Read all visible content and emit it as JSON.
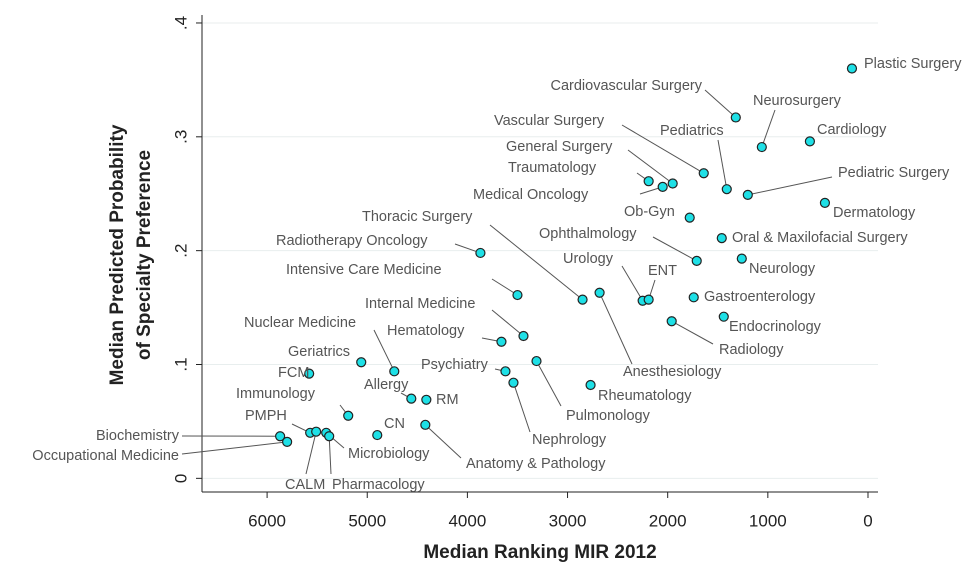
{
  "chart_data": {
    "type": "scatter",
    "xlabel": "Median Ranking MIR 2012",
    "ylabel": [
      "Median Predicted Probability",
      "of Specialty Preference"
    ],
    "xlim": [
      6650,
      -100
    ],
    "ylim": [
      -0.012,
      0.407
    ],
    "xticks": [
      6000,
      5000,
      4000,
      3000,
      2000,
      1000,
      0
    ],
    "yticks": [
      0,
      {
        "value": 0.1,
        "label": ".1"
      },
      {
        "value": 0.2,
        "label": ".2"
      },
      {
        "value": 0.3,
        "label": ".3"
      },
      {
        "value": 0.4,
        "label": ".4"
      }
    ],
    "grid": true,
    "color": "#1ee0e6",
    "points": [
      {
        "label": "Plastic Surgery",
        "x": 160,
        "y": 0.36
      },
      {
        "label": "Cardiovascular Surgery",
        "x": 1320,
        "y": 0.317
      },
      {
        "label": "Neurosurgery",
        "x": 1060,
        "y": 0.291
      },
      {
        "label": "Cardiology",
        "x": 580,
        "y": 0.296
      },
      {
        "label": "Pediatric Surgery",
        "x": 1200,
        "y": 0.249
      },
      {
        "label": "Dermatology",
        "x": 430,
        "y": 0.242
      },
      {
        "label": "Pediatrics",
        "x": 1410,
        "y": 0.254
      },
      {
        "label": "Vascular Surgery",
        "x": 1640,
        "y": 0.268
      },
      {
        "label": "General Surgery",
        "x": 1950,
        "y": 0.259
      },
      {
        "label": "Traumatology",
        "x": 2190,
        "y": 0.261
      },
      {
        "label": "Medical Oncology",
        "x": 2050,
        "y": 0.256
      },
      {
        "label": "Ob-Gyn",
        "x": 1780,
        "y": 0.229
      },
      {
        "label": "Oral & Maxilofacial Surgery",
        "x": 1460,
        "y": 0.211
      },
      {
        "label": "Ophthalmology",
        "x": 1710,
        "y": 0.191
      },
      {
        "label": "Neurology",
        "x": 1260,
        "y": 0.193
      },
      {
        "label": "Urology",
        "x": 2250,
        "y": 0.156
      },
      {
        "label": "ENT",
        "x": 2190,
        "y": 0.157
      },
      {
        "label": "Gastroenterology",
        "x": 1740,
        "y": 0.159
      },
      {
        "label": "Endocrinology",
        "x": 1440,
        "y": 0.142
      },
      {
        "label": "Radiology",
        "x": 1960,
        "y": 0.138
      },
      {
        "label": "Anesthesiology",
        "x": 2680,
        "y": 0.163
      },
      {
        "label": "Thoracic Surgery",
        "x": 2850,
        "y": 0.157
      },
      {
        "label": "Radiotherapy Oncology",
        "x": 3870,
        "y": 0.198
      },
      {
        "label": "Intensive Care Medicine",
        "x": 3500,
        "y": 0.161
      },
      {
        "label": "Internal Medicine",
        "x": 3440,
        "y": 0.125
      },
      {
        "label": "Hematology",
        "x": 3660,
        "y": 0.12
      },
      {
        "label": "Nuclear Medicine",
        "x": 4730,
        "y": 0.094
      },
      {
        "label": "Geriatrics",
        "x": 5060,
        "y": 0.102
      },
      {
        "label": "FCM",
        "x": 5580,
        "y": 0.092
      },
      {
        "label": "Allergy",
        "x": 4560,
        "y": 0.07
      },
      {
        "label": "RM",
        "x": 4410,
        "y": 0.069
      },
      {
        "label": "Psychiatry",
        "x": 3620,
        "y": 0.094
      },
      {
        "label": "Rheumatology",
        "x": 2770,
        "y": 0.082
      },
      {
        "label": "Pulmonology",
        "x": 3310,
        "y": 0.103
      },
      {
        "label": "Nephrology",
        "x": 3540,
        "y": 0.084
      },
      {
        "label": "Immunology",
        "x": 5190,
        "y": 0.055
      },
      {
        "label": "PMPH",
        "x": 5570,
        "y": 0.04
      },
      {
        "label": "CN",
        "x": 4900,
        "y": 0.038
      },
      {
        "label": "Biochemistry",
        "x": 5870,
        "y": 0.037
      },
      {
        "label": "Occupational Medicine",
        "x": 5800,
        "y": 0.032
      },
      {
        "label": "Microbiology",
        "x": 5410,
        "y": 0.04
      },
      {
        "label": "Anatomy & Pathology",
        "x": 4420,
        "y": 0.047
      },
      {
        "label": "CALM",
        "x": 5510,
        "y": 0.041
      },
      {
        "label": "Pharmacology",
        "x": 5380,
        "y": 0.037
      }
    ]
  }
}
